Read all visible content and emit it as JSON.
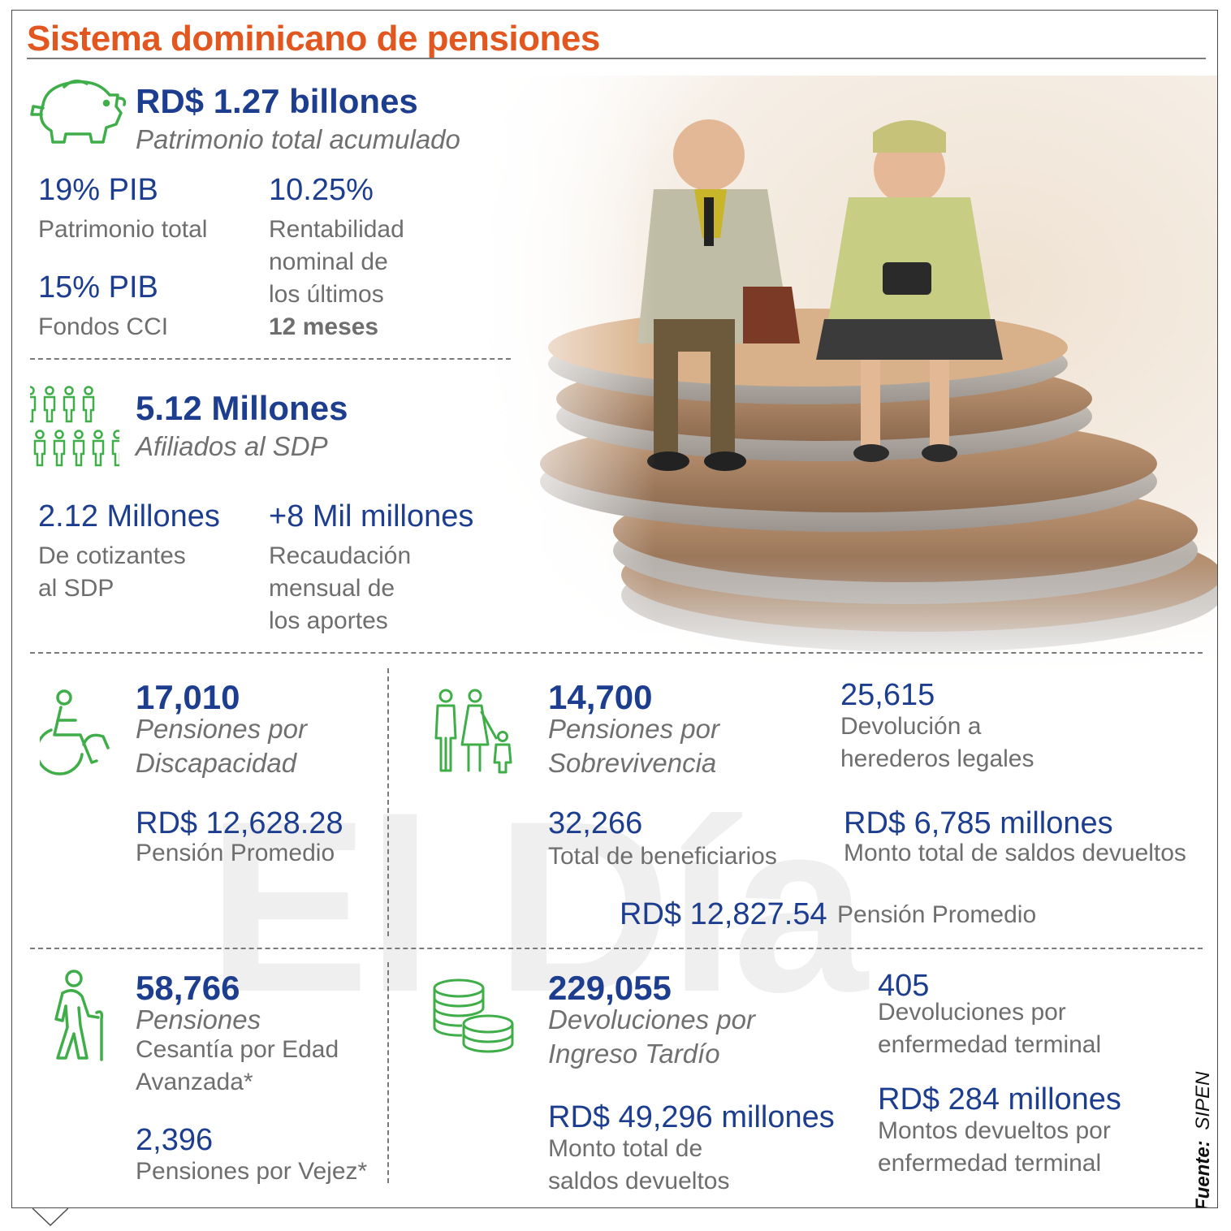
{
  "title": "Sistema dominicano de pensiones",
  "watermark": "El Día",
  "colors": {
    "title": "#e2571f",
    "figures": "#1d3d8f",
    "icons": "#3fae49",
    "labels": "#6e6e6e"
  },
  "patrimonio": {
    "icon": "piggy-bank-icon",
    "value": "RD$ 1.27 billones",
    "label": "Patrimonio total acumulado",
    "pib_value": "19% PIB",
    "pib_label": "Patrimonio total",
    "cci_value": "15% PIB",
    "cci_label": "Fondos CCI",
    "rent_value": "10.25%",
    "rent_label_1": "Rentabilidad",
    "rent_label_2": "nominal de",
    "rent_label_3": "los últimos",
    "rent_label_4": "12 meses"
  },
  "afiliados": {
    "icon": "people-group-icon",
    "value": "5.12 Millones",
    "label": "Afiliados al SDP",
    "cot_value": "2.12 Millones",
    "cot_label_1": "De cotizantes",
    "cot_label_2": "al SDP",
    "rec_value": "+8 Mil millones",
    "rec_label_1": "Recaudación",
    "rec_label_2": "mensual de",
    "rec_label_3": "los aportes"
  },
  "discapacidad": {
    "icon": "wheelchair-icon",
    "value": "17,010",
    "label_1": "Pensiones por",
    "label_2": "Discapacidad",
    "avg_value": "RD$ 12,628.28",
    "avg_label": "Pensión Promedio"
  },
  "sobrevivencia": {
    "icon": "family-icon",
    "value": "14,700",
    "label_1": "Pensiones por",
    "label_2": "Sobrevivencia",
    "ben_value": "32,266",
    "ben_label": "Total de beneficiarios",
    "avg_value": "RD$ 12,827.54",
    "avg_label": "Pensión Promedio",
    "her_value": "25,615",
    "her_label_1": "Devolución a",
    "her_label_2": "herederos legales",
    "saldo_value": "RD$ 6,785 millones",
    "saldo_label": "Monto total de saldos devueltos"
  },
  "cesantia": {
    "icon": "elderly-cane-icon",
    "value": "58,766",
    "label_1": "Pensiones",
    "label_2": "Cesantía por Edad",
    "label_3": "Avanzada*",
    "vejez_value": "2,396",
    "vejez_label": "Pensiones por Vejez*"
  },
  "devoluciones": {
    "icon": "coins-stack-icon",
    "value": "229,055",
    "label_1": "Devoluciones por",
    "label_2": "Ingreso Tardío",
    "monto_value": "RD$ 49,296 millones",
    "monto_label_1": "Monto total de",
    "monto_label_2": "saldos devueltos",
    "term_value": "405",
    "term_label_1": "Devoluciones por",
    "term_label_2": "enfermedad terminal",
    "term_monto_value": "RD$ 284 millones",
    "term_monto_label_1": "Montos devueltos por",
    "term_monto_label_2": "enfermedad terminal"
  },
  "source": {
    "label": "Fuente:",
    "value": "SIPEN"
  }
}
